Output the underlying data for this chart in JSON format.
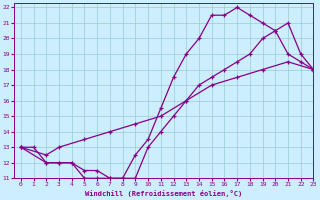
{
  "xlabel": "Windchill (Refroidissement éolien,°C)",
  "bg_color": "#cceeff",
  "line_color": "#880088",
  "grid_color": "#99cccc",
  "xlim": [
    -0.5,
    23
  ],
  "ylim": [
    11,
    22.3
  ],
  "xticks": [
    0,
    1,
    2,
    3,
    4,
    5,
    6,
    7,
    8,
    9,
    10,
    11,
    12,
    13,
    14,
    15,
    16,
    17,
    18,
    19,
    20,
    21,
    22,
    23
  ],
  "yticks": [
    11,
    12,
    13,
    14,
    15,
    16,
    17,
    18,
    19,
    20,
    21,
    22
  ],
  "line1_x": [
    0,
    1,
    2,
    3,
    4,
    5,
    6,
    7,
    8,
    9,
    10,
    11,
    12,
    13,
    14,
    15,
    16,
    17,
    18,
    19,
    20,
    21,
    22,
    23
  ],
  "line1_y": [
    13,
    13,
    12,
    12,
    12,
    11,
    11,
    11,
    11,
    12.5,
    13.5,
    15.5,
    17.5,
    19,
    20,
    21.5,
    21.5,
    22,
    21.5,
    21,
    20.5,
    19,
    18.5,
    18
  ],
  "line2_x": [
    0,
    2,
    3,
    4,
    5,
    6,
    7,
    8,
    9,
    10,
    11,
    12,
    13,
    14,
    15,
    16,
    17,
    18,
    19,
    20,
    21,
    22,
    23
  ],
  "line2_y": [
    13,
    12,
    12,
    12,
    11.5,
    11.5,
    11,
    11,
    11,
    13,
    14,
    15,
    16,
    17,
    17.5,
    18,
    18.5,
    19,
    20,
    20.5,
    21,
    19,
    18
  ],
  "line3_x": [
    0,
    2,
    3,
    5,
    7,
    9,
    11,
    13,
    15,
    17,
    19,
    21,
    23
  ],
  "line3_y": [
    13,
    12.5,
    13,
    13.5,
    14,
    14.5,
    15,
    16,
    17,
    17.5,
    18,
    18.5,
    18
  ]
}
